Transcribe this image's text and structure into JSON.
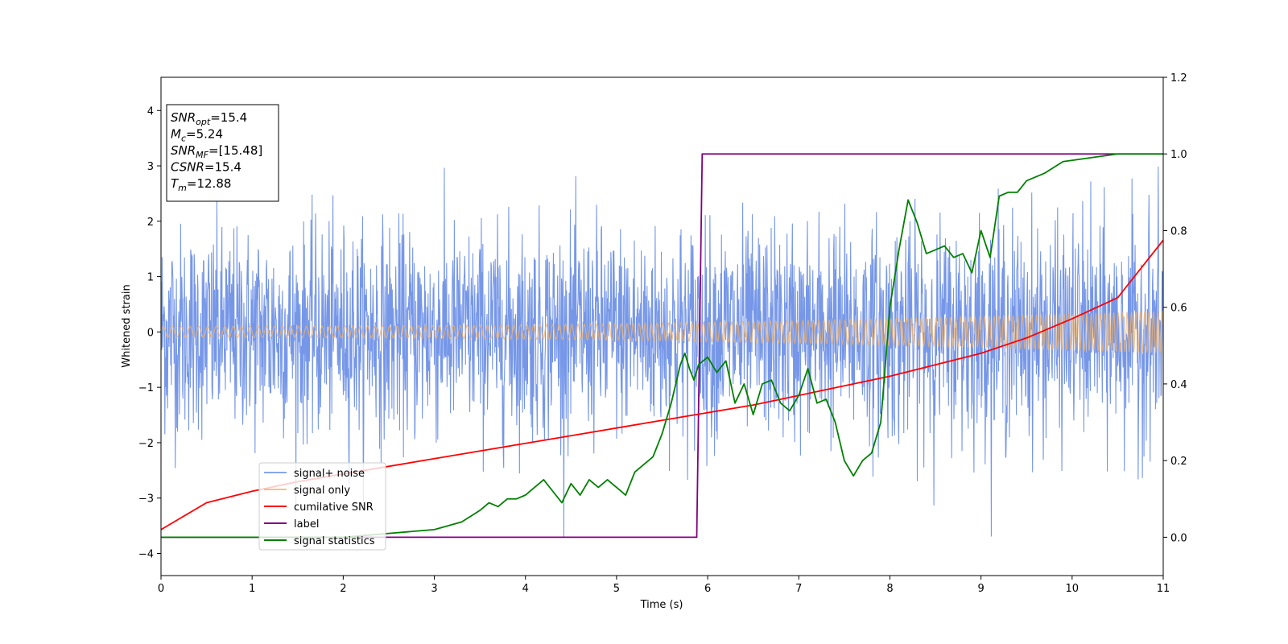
{
  "chart_data": {
    "type": "line",
    "xlabel": "Time (s)",
    "ylabel": "Whitened strain",
    "ylabel_right": "",
    "xlim": [
      0,
      11
    ],
    "ylim_left": [
      -4.4,
      4.6
    ],
    "ylim_right": [
      -0.1,
      1.2
    ],
    "x_ticks": [
      0,
      1,
      2,
      3,
      4,
      5,
      6,
      7,
      8,
      9,
      10,
      11
    ],
    "y_ticks_left": [
      -4,
      -3,
      -2,
      -1,
      0,
      1,
      2,
      3,
      4
    ],
    "y_ticks_right": [
      "0.0",
      "0.2",
      "0.4",
      "0.6",
      "0.8",
      "1.0",
      "1.2"
    ],
    "grid": false,
    "legend_position": "lower-left",
    "annotation_lines": [
      {
        "label": "SNR",
        "subscript": "opt",
        "value": "=15.4"
      },
      {
        "label": "M",
        "subscript": "c",
        "value": "=5.24"
      },
      {
        "label": "SNR",
        "subscript": "MF",
        "value": "=[15.48]"
      },
      {
        "label": "CSNR",
        "subscript": "",
        "value": "=15.4"
      },
      {
        "label": "T",
        "subscript": "m",
        "value": "=12.88"
      }
    ],
    "series": [
      {
        "name": "signal+ noise",
        "axis": "left",
        "color": "#6a8ee6",
        "kind": "noise",
        "amplitude_std": 1.0
      },
      {
        "name": "signal only",
        "axis": "left",
        "color": "#f4b266",
        "kind": "chirp",
        "amplitude_start": 0.1,
        "amplitude_end": 0.38
      },
      {
        "name": "cumilative SNR",
        "axis": "right",
        "color": "#ff0000",
        "x": [
          0,
          0.5,
          1,
          1.5,
          2,
          2.5,
          3,
          3.5,
          4,
          4.5,
          5,
          5.5,
          6,
          6.5,
          7,
          7.5,
          8,
          8.5,
          9,
          9.5,
          10,
          10.5,
          11
        ],
        "values": [
          0.02,
          0.09,
          0.12,
          0.145,
          0.165,
          0.185,
          0.205,
          0.225,
          0.245,
          0.265,
          0.285,
          0.305,
          0.325,
          0.345,
          0.37,
          0.395,
          0.42,
          0.45,
          0.48,
          0.52,
          0.57,
          0.625,
          0.775
        ]
      },
      {
        "name": "label",
        "axis": "right",
        "color": "#800080",
        "x": [
          0,
          5.88,
          5.94,
          11
        ],
        "values": [
          0,
          0,
          1,
          1
        ]
      },
      {
        "name": "signal statistics",
        "axis": "right",
        "color": "#008000",
        "x": [
          0,
          1,
          2,
          2.5,
          3,
          3.3,
          3.5,
          3.6,
          3.7,
          3.8,
          3.9,
          4.0,
          4.1,
          4.2,
          4.3,
          4.4,
          4.5,
          4.6,
          4.7,
          4.8,
          4.9,
          5.0,
          5.1,
          5.2,
          5.3,
          5.4,
          5.5,
          5.6,
          5.7,
          5.75,
          5.8,
          5.85,
          5.9,
          6.0,
          6.1,
          6.2,
          6.3,
          6.4,
          6.5,
          6.6,
          6.7,
          6.8,
          6.9,
          7.0,
          7.1,
          7.2,
          7.3,
          7.4,
          7.5,
          7.6,
          7.7,
          7.8,
          7.9,
          8.0,
          8.1,
          8.2,
          8.3,
          8.4,
          8.5,
          8.6,
          8.7,
          8.8,
          8.9,
          9.0,
          9.1,
          9.2,
          9.3,
          9.4,
          9.5,
          9.7,
          9.9,
          10.2,
          10.5,
          11
        ],
        "values": [
          0.0,
          0.0,
          0.0,
          0.01,
          0.02,
          0.04,
          0.07,
          0.09,
          0.08,
          0.1,
          0.1,
          0.11,
          0.13,
          0.15,
          0.12,
          0.09,
          0.14,
          0.11,
          0.15,
          0.13,
          0.15,
          0.13,
          0.11,
          0.17,
          0.19,
          0.21,
          0.27,
          0.35,
          0.45,
          0.48,
          0.44,
          0.41,
          0.45,
          0.47,
          0.43,
          0.46,
          0.35,
          0.4,
          0.32,
          0.4,
          0.41,
          0.35,
          0.33,
          0.37,
          0.44,
          0.35,
          0.36,
          0.3,
          0.2,
          0.16,
          0.2,
          0.22,
          0.3,
          0.6,
          0.75,
          0.88,
          0.82,
          0.74,
          0.75,
          0.76,
          0.73,
          0.74,
          0.69,
          0.8,
          0.73,
          0.89,
          0.9,
          0.9,
          0.93,
          0.95,
          0.98,
          0.99,
          1.0,
          1.0
        ]
      }
    ]
  }
}
